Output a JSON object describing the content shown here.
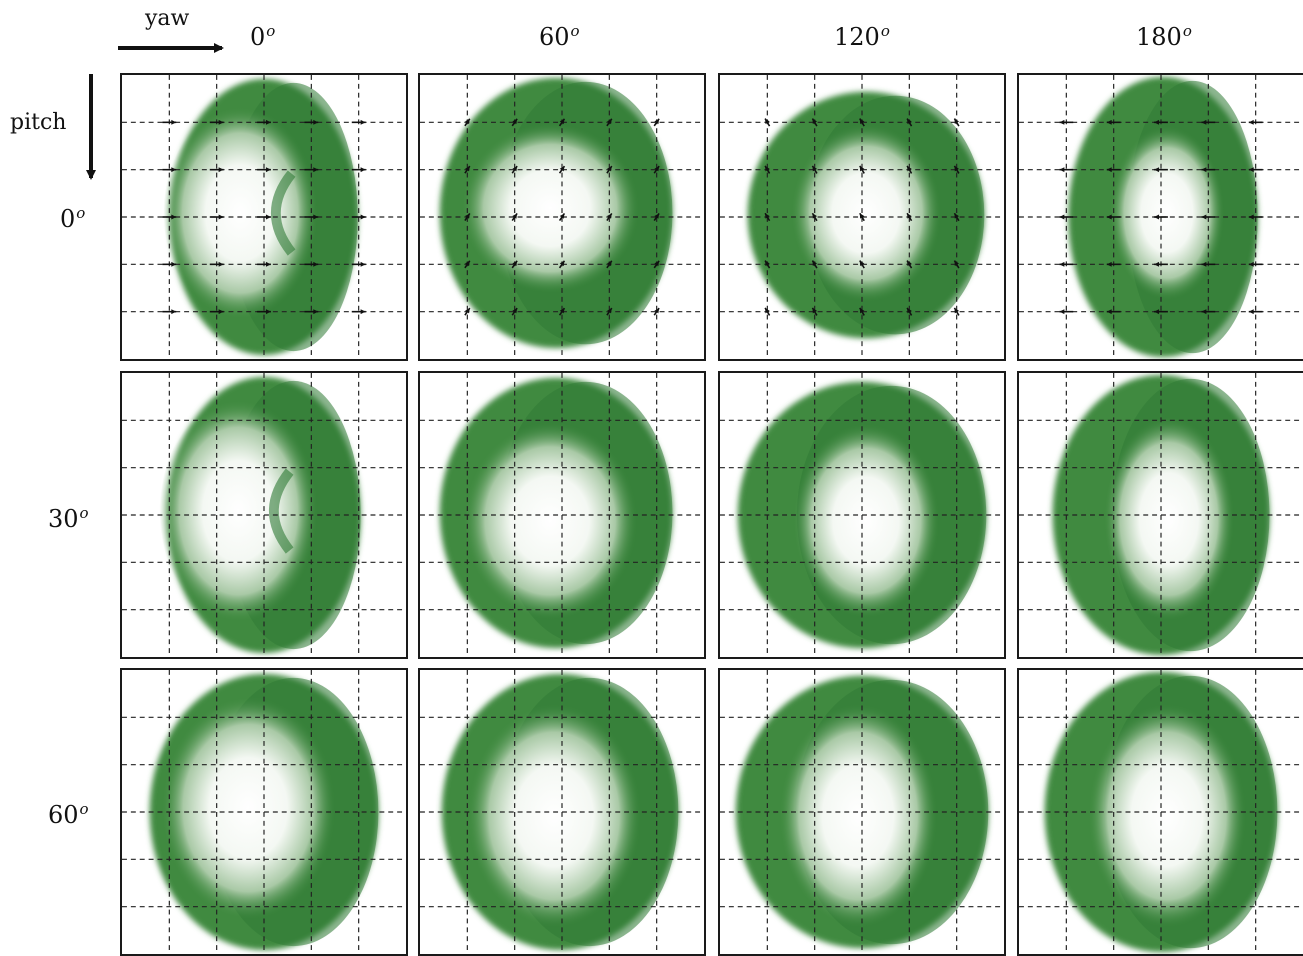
{
  "axes": {
    "yaw_label": "yaw",
    "pitch_label": "pitch"
  },
  "columns": [
    {
      "value": "0",
      "unit": "o"
    },
    {
      "value": "60",
      "unit": "o"
    },
    {
      "value": "120",
      "unit": "o"
    },
    {
      "value": "180",
      "unit": "o"
    }
  ],
  "rows": [
    {
      "value": "0",
      "unit": "o"
    },
    {
      "value": "30",
      "unit": "o"
    },
    {
      "value": "60",
      "unit": "o"
    }
  ],
  "colors": {
    "shape_green": "#3f8a3f",
    "shape_dark_green": "#2f7a35",
    "center_white": "#ffffff",
    "grid_line": "#222222",
    "arrow": "#111111"
  },
  "flow_field_row": 0
}
